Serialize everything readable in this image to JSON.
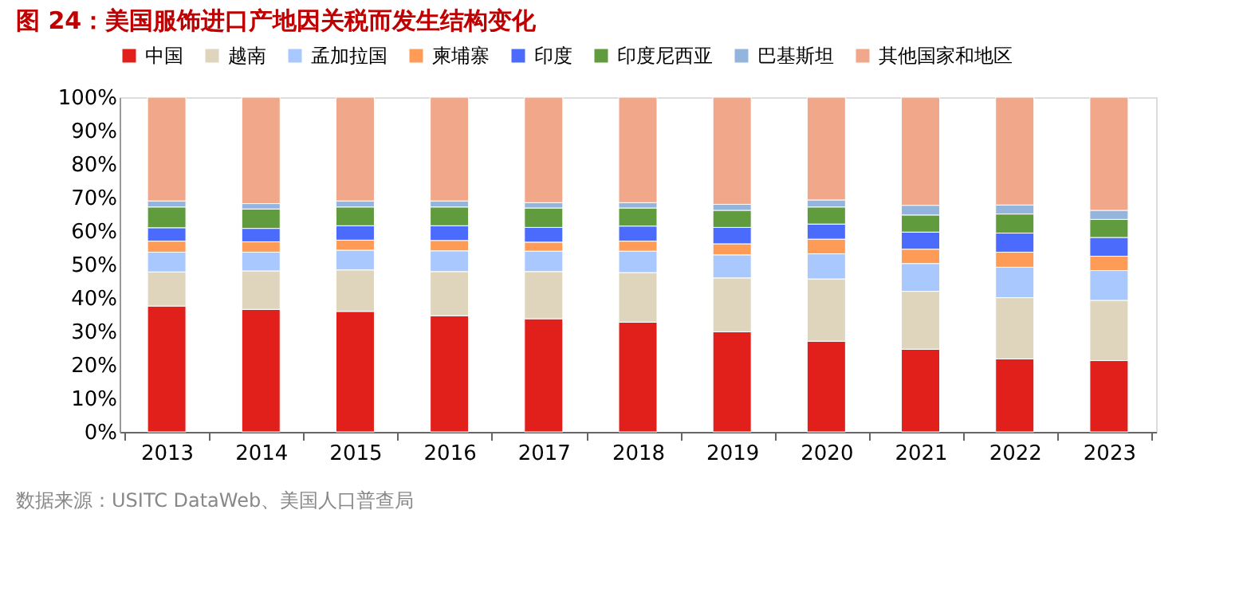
{
  "chart_data": {
    "type": "bar",
    "stacked": true,
    "title": "图 24：美国服饰进口产地因关税而发生结构变化",
    "categories": [
      "2013",
      "2014",
      "2015",
      "2016",
      "2017",
      "2018",
      "2019",
      "2020",
      "2021",
      "2022",
      "2023"
    ],
    "series": [
      {
        "name": "中国",
        "color": "#e2201b",
        "values": [
          37.6,
          36.6,
          36.0,
          34.7,
          33.8,
          32.8,
          29.9,
          27.1,
          24.7,
          21.8,
          21.3
        ]
      },
      {
        "name": "越南",
        "color": "#dfd5bd",
        "values": [
          10.2,
          11.5,
          12.4,
          13.2,
          14.1,
          14.8,
          16.1,
          18.6,
          17.3,
          18.3,
          18.0
        ]
      },
      {
        "name": "孟加拉国",
        "color": "#a9c8fe",
        "values": [
          5.9,
          5.6,
          5.9,
          6.2,
          6.1,
          6.4,
          6.9,
          7.5,
          8.3,
          9.1,
          8.9
        ]
      },
      {
        "name": "柬埔寨",
        "color": "#fe9c57",
        "values": [
          3.3,
          3.1,
          3.0,
          3.1,
          2.7,
          3.0,
          3.3,
          4.4,
          4.3,
          4.5,
          4.3
        ]
      },
      {
        "name": "印度",
        "color": "#4b6bfd",
        "values": [
          4.0,
          4.0,
          4.3,
          4.4,
          4.4,
          4.5,
          4.9,
          4.5,
          5.1,
          5.7,
          5.6
        ]
      },
      {
        "name": "印度尼西亚",
        "color": "#609b3d",
        "values": [
          6.2,
          5.8,
          5.6,
          5.6,
          5.8,
          5.4,
          5.1,
          5.1,
          5.1,
          5.7,
          5.4
        ]
      },
      {
        "name": "巴基斯坦",
        "color": "#93b4dd",
        "values": [
          1.8,
          1.6,
          1.8,
          1.8,
          1.6,
          1.6,
          1.8,
          2.1,
          2.9,
          2.7,
          2.7
        ]
      },
      {
        "name": "其他国家和地区",
        "color": "#f0a78a",
        "values": [
          31.0,
          31.8,
          31.0,
          31.0,
          31.5,
          31.5,
          32.0,
          30.7,
          32.3,
          32.2,
          33.8
        ]
      }
    ],
    "ylim": [
      0,
      100
    ],
    "yticks": [
      {
        "value": 0,
        "label": "0%"
      },
      {
        "value": 10,
        "label": "10%"
      },
      {
        "value": 20,
        "label": "20%"
      },
      {
        "value": 30,
        "label": "30%"
      },
      {
        "value": 40,
        "label": "40%"
      },
      {
        "value": 50,
        "label": "50%"
      },
      {
        "value": 60,
        "label": "60%"
      },
      {
        "value": 70,
        "label": "70%"
      },
      {
        "value": 80,
        "label": "80%"
      },
      {
        "value": 90,
        "label": "90%"
      },
      {
        "value": 100,
        "label": "100%"
      }
    ],
    "legend": "top",
    "grid": false,
    "annotations": [
      "数据来源：USITC DataWeb、美国人口普查局"
    ]
  }
}
